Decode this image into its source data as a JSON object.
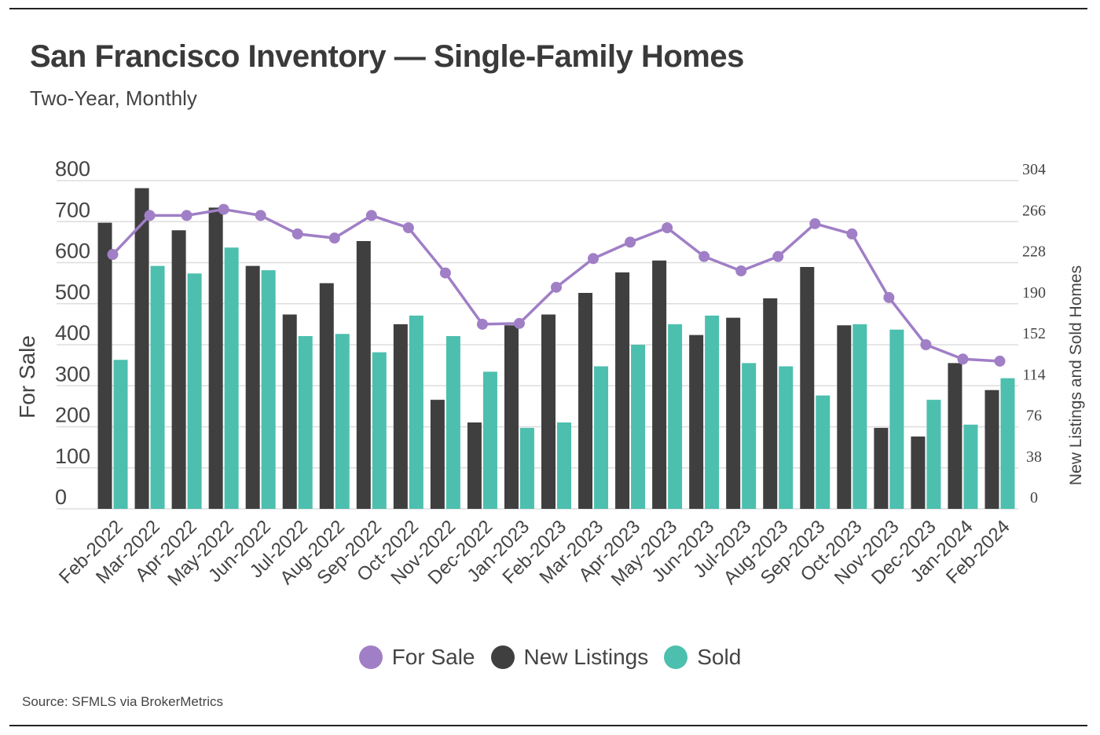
{
  "header": {
    "title": "San Francisco Inventory — Single-Family Homes",
    "subtitle": "Two-Year, Monthly"
  },
  "footer": {
    "source": "Source:  SFMLS via BrokerMetrics"
  },
  "colors": {
    "for_sale": "#a07fc6",
    "new_listings": "#3f3f3f",
    "sold": "#4dbfae",
    "grid": "#dddddd"
  },
  "chart_data": {
    "type": "bar",
    "title": "San Francisco Inventory — Single-Family Homes",
    "subtitle": "Two-Year, Monthly",
    "categories": [
      "Feb-2022",
      "Mar-2022",
      "Apr-2022",
      "May-2022",
      "Jun-2022",
      "Jul-2022",
      "Aug-2022",
      "Sep-2022",
      "Oct-2022",
      "Nov-2022",
      "Dec-2022",
      "Jan-2023",
      "Feb-2023",
      "Mar-2023",
      "Apr-2023",
      "May-2023",
      "Jun-2023",
      "Jul-2023",
      "Aug-2023",
      "Sep-2023",
      "Oct-2023",
      "Nov-2023",
      "Dec-2023",
      "Jan-2024",
      "Feb-2024"
    ],
    "ylabel_left": "For Sale",
    "ylabel_right": "New Listings and Sold Homes",
    "ylim_left": [
      0,
      800
    ],
    "yticks_left": [
      0,
      100,
      200,
      300,
      400,
      500,
      600,
      700,
      800
    ],
    "ylim_right": [
      0,
      304
    ],
    "yticks_right": [
      0,
      38,
      76,
      114,
      152,
      190,
      228,
      266,
      304
    ],
    "grid": true,
    "legend_position": "bottom-center",
    "series": [
      {
        "name": "For Sale",
        "type": "line",
        "axis": "left",
        "values": [
          620,
          715,
          715,
          730,
          715,
          670,
          660,
          715,
          685,
          575,
          450,
          452,
          540,
          610,
          650,
          685,
          615,
          580,
          615,
          695,
          670,
          515,
          400,
          365,
          360
        ]
      },
      {
        "name": "New Listings",
        "type": "bar",
        "axis": "right",
        "values": [
          265,
          297,
          258,
          279,
          225,
          180,
          209,
          248,
          171,
          101,
          80,
          170,
          180,
          200,
          219,
          230,
          161,
          177,
          195,
          224,
          170,
          75,
          67,
          135,
          110
        ]
      },
      {
        "name": "Sold",
        "type": "bar",
        "axis": "right",
        "values": [
          138,
          225,
          218,
          242,
          221,
          160,
          162,
          145,
          179,
          160,
          127,
          75,
          80,
          132,
          152,
          171,
          179,
          135,
          132,
          105,
          171,
          166,
          101,
          78,
          121
        ]
      }
    ]
  }
}
